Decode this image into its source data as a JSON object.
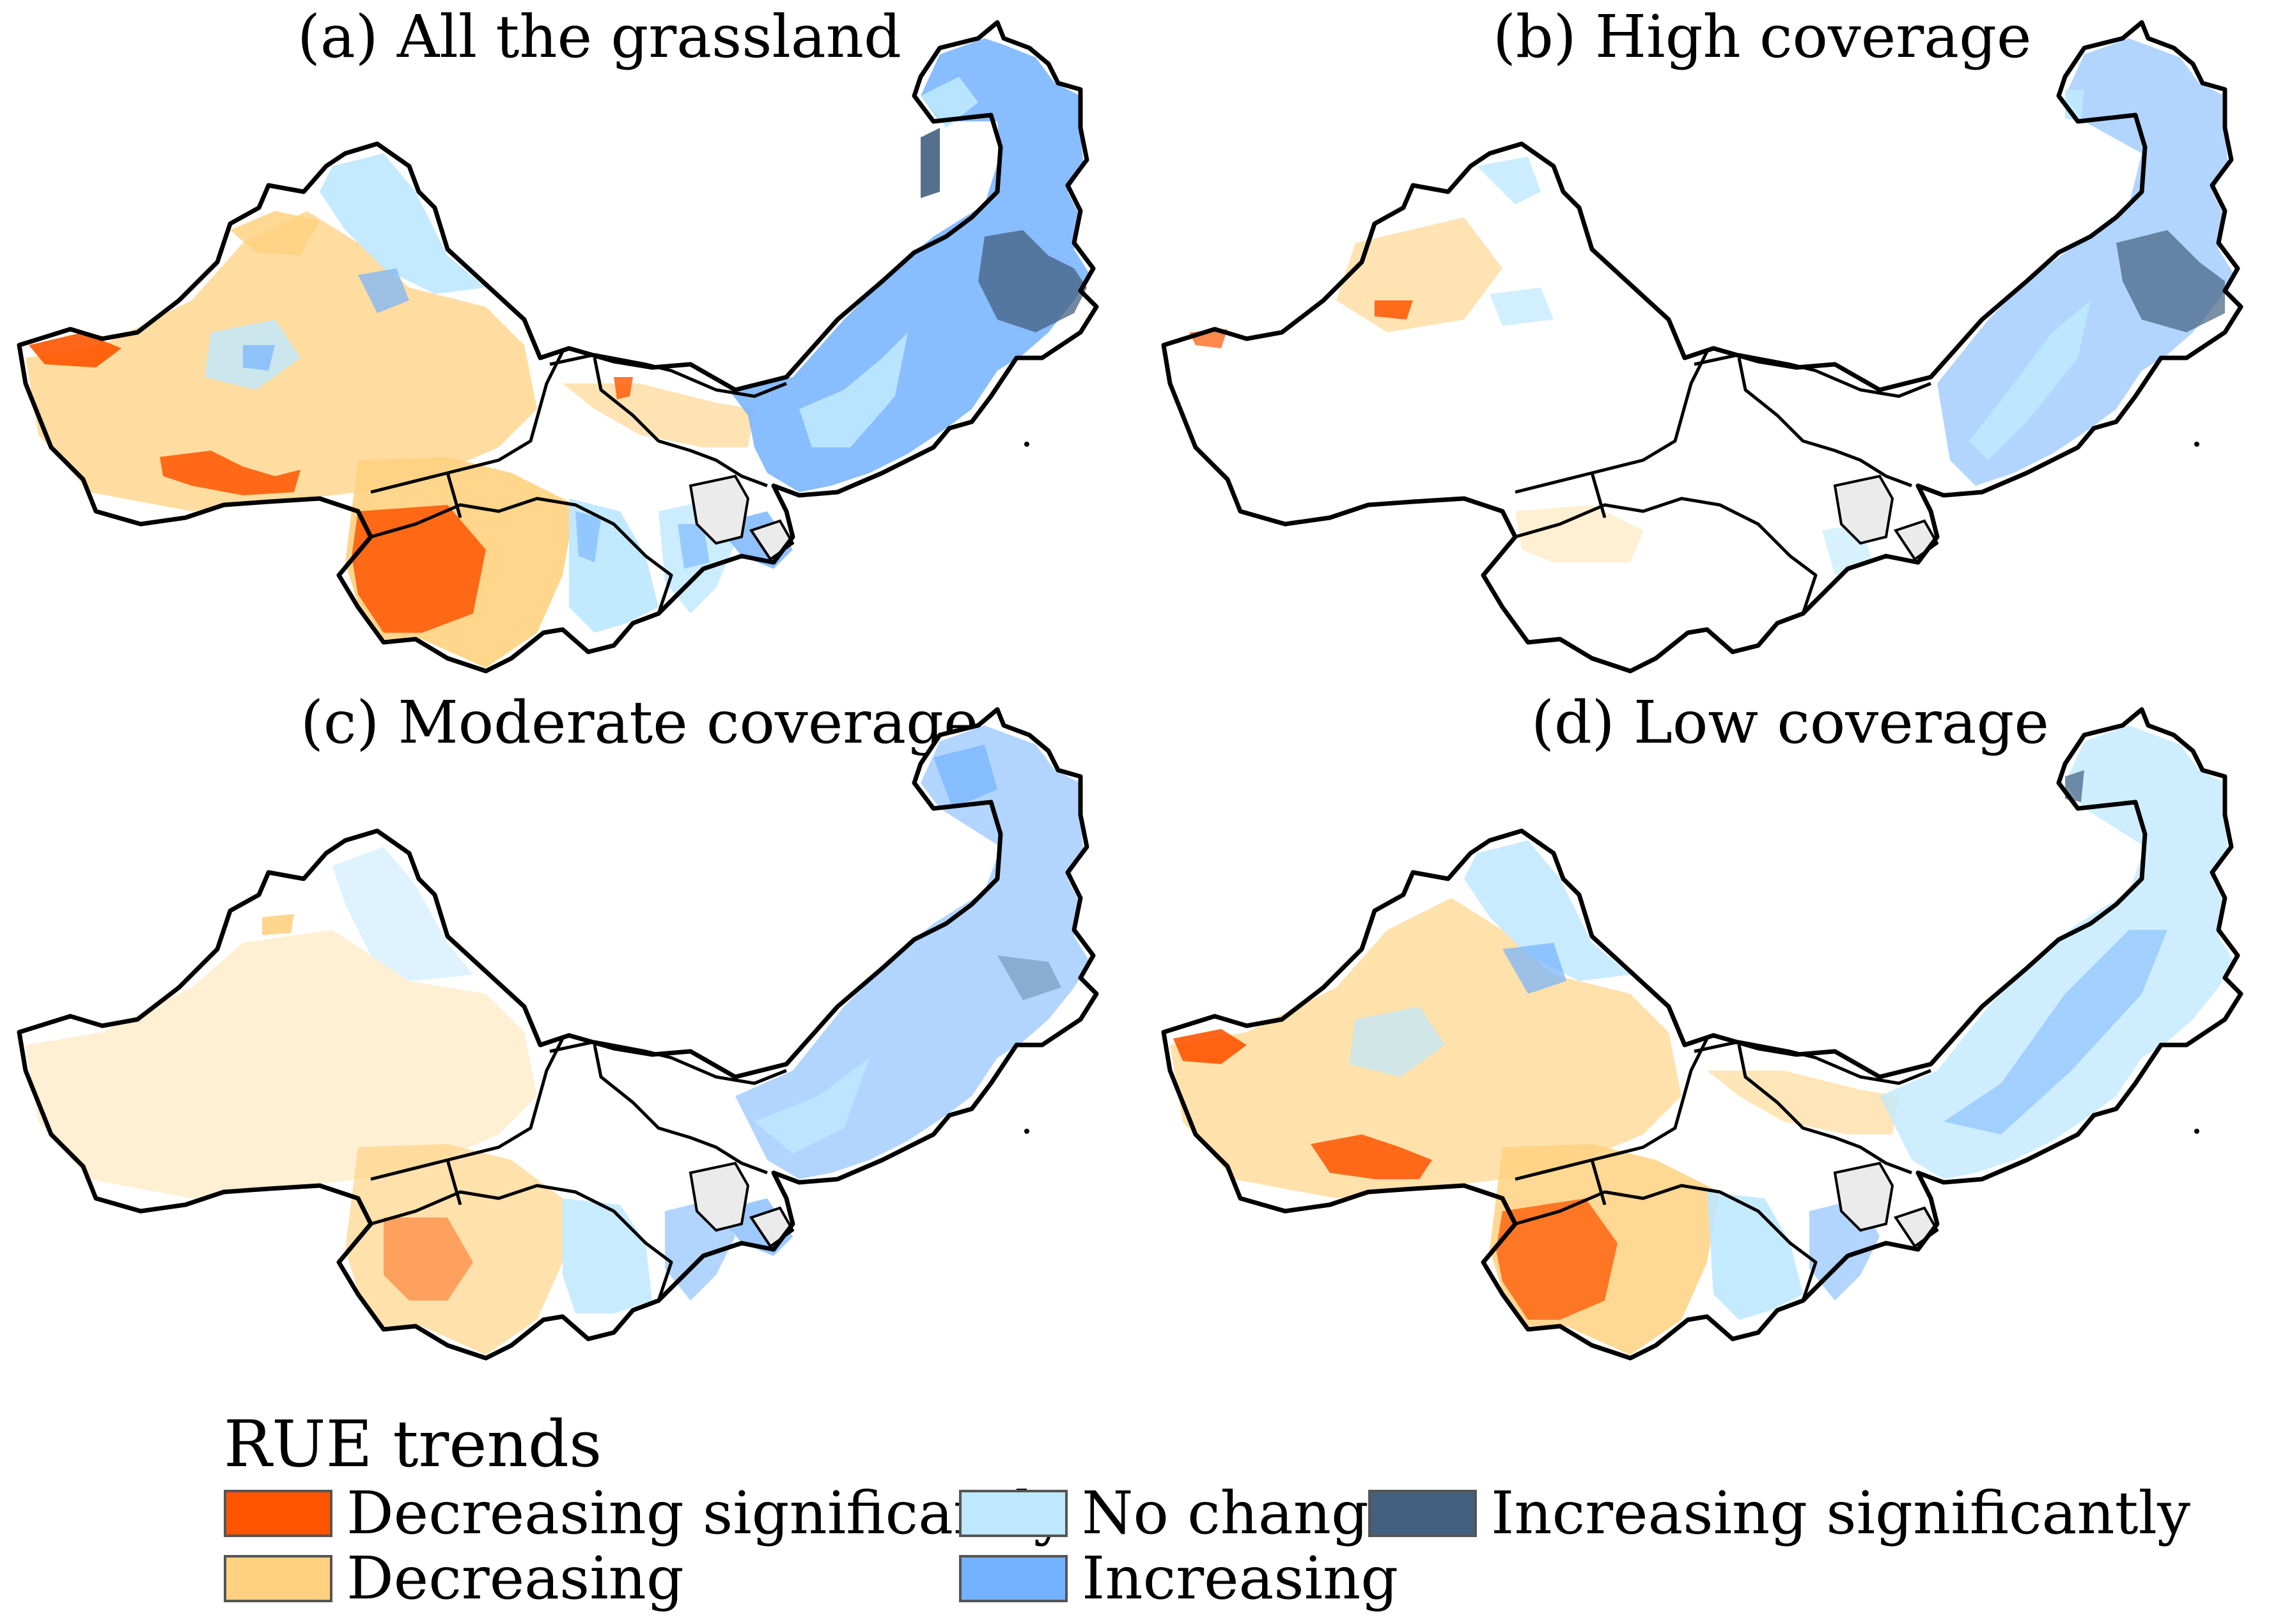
{
  "panels": [
    {
      "id": "a",
      "title": "(a) All the grassland"
    },
    {
      "id": "b",
      "title": "(b) High coverage"
    },
    {
      "id": "c",
      "title": "(c) Moderate coverage"
    },
    {
      "id": "d",
      "title": "(d) Low coverage"
    }
  ],
  "legend": {
    "title": "RUE trends",
    "items": [
      {
        "label": "Decreasing significantly",
        "color": "#ff5500"
      },
      {
        "label": "No change",
        "color": "#bee8ff"
      },
      {
        "label": "Increasing significantly",
        "color": "#43607f"
      },
      {
        "label": "Decreasing",
        "color": "#ffd180"
      },
      {
        "label": "Increasing",
        "color": "#73b2ff"
      }
    ]
  }
}
